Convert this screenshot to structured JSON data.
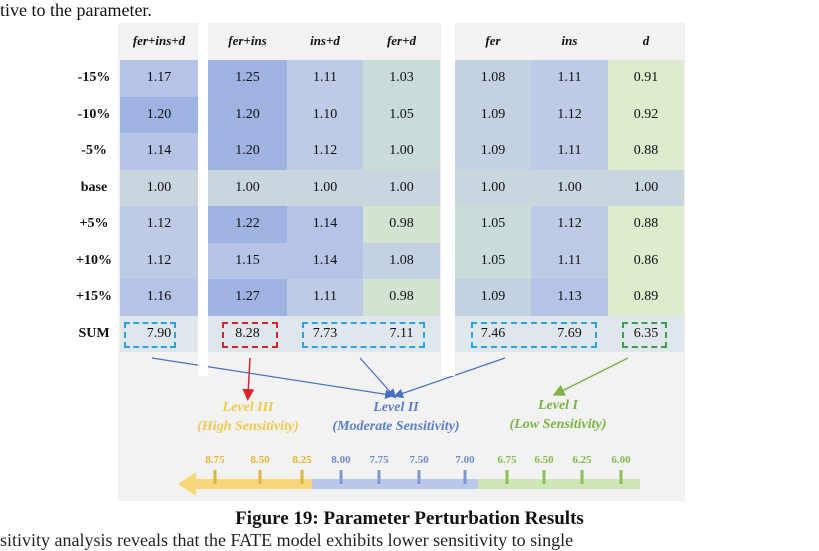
{
  "top_text": "tive to the parameter.",
  "caption": "Figure 19: Parameter Perturbation Results",
  "bottom_text": "sitivity analysis reveals that the FATE model exhibits lower sensitivity to single",
  "table": {
    "columns": [
      "fer+ins+d",
      "fer+ins",
      "ins+d",
      "fer+d",
      "fer",
      "ins",
      "d"
    ],
    "rows": [
      {
        "label": "-15%",
        "values": [
          "1.17",
          "1.25",
          "1.11",
          "1.03",
          "1.08",
          "1.11",
          "0.91"
        ]
      },
      {
        "label": "-10%",
        "values": [
          "1.20",
          "1.20",
          "1.10",
          "1.05",
          "1.09",
          "1.12",
          "0.92"
        ]
      },
      {
        "label": "-5%",
        "values": [
          "1.14",
          "1.20",
          "1.12",
          "1.00",
          "1.09",
          "1.11",
          "0.88"
        ]
      },
      {
        "label": "base",
        "values": [
          "1.00",
          "1.00",
          "1.00",
          "1.00",
          "1.00",
          "1.00",
          "1.00"
        ]
      },
      {
        "label": "+5%",
        "values": [
          "1.12",
          "1.22",
          "1.14",
          "0.98",
          "1.05",
          "1.12",
          "0.88"
        ]
      },
      {
        "label": "+10%",
        "values": [
          "1.12",
          "1.15",
          "1.14",
          "1.08",
          "1.05",
          "1.11",
          "0.86"
        ]
      },
      {
        "label": "+15%",
        "values": [
          "1.16",
          "1.27",
          "1.11",
          "0.98",
          "1.09",
          "1.13",
          "0.89"
        ]
      }
    ],
    "sum_label": "SUM",
    "sums": [
      "7.90",
      "8.28",
      "7.73",
      "7.11",
      "7.46",
      "7.69",
      "6.35"
    ]
  },
  "levels": [
    {
      "title": "Level III",
      "subtitle": "(High Sensitivity)",
      "color": "#f2c94c"
    },
    {
      "title": "Level II",
      "subtitle": "(Moderate Sensitivity)",
      "color": "#5b7fc7"
    },
    {
      "title": "Level I",
      "subtitle": "(Low Sensitivity)",
      "color": "#7cb342"
    }
  ],
  "scale": {
    "ticks": [
      "8.75",
      "8.50",
      "8.25",
      "8.00",
      "7.75",
      "7.50",
      "7.00",
      "6.75",
      "6.50",
      "6.25",
      "6.00"
    ]
  },
  "colors": {
    "high": "#f2c94c",
    "moderate": "#5b7fc7",
    "low": "#7cb342",
    "box_blue": "#29a3e0",
    "box_red": "#d9232d",
    "box_green": "#3aa046"
  }
}
